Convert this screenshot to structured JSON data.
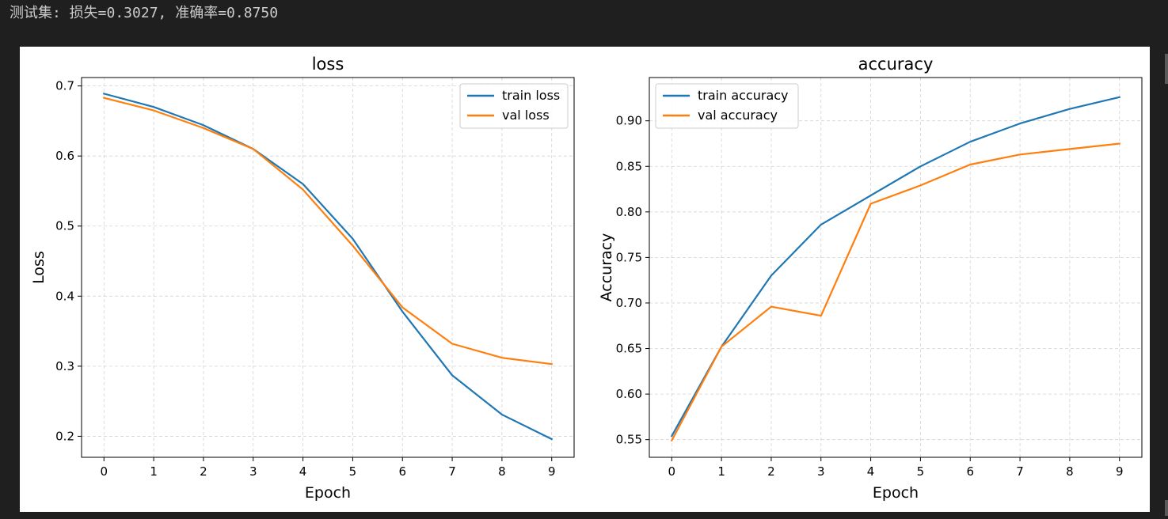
{
  "output": {
    "text": "测试集: 损失=0.3027, 准确率=0.8750"
  },
  "chart_data": [
    {
      "type": "line",
      "title": "loss",
      "xlabel": "Epoch",
      "ylabel": "Loss",
      "x": [
        0,
        1,
        2,
        3,
        4,
        5,
        6,
        7,
        8,
        9
      ],
      "xlim": [
        -0.45,
        9.45
      ],
      "ylim": [
        0.17,
        0.712
      ],
      "xticks": [
        "0",
        "1",
        "2",
        "3",
        "4",
        "5",
        "6",
        "7",
        "8",
        "9"
      ],
      "yticks": [
        "0.2",
        "0.3",
        "0.4",
        "0.5",
        "0.6",
        "0.7"
      ],
      "ytick_values": [
        0.2,
        0.3,
        0.4,
        0.5,
        0.6,
        0.7
      ],
      "grid": true,
      "legend_position": "top-right",
      "series": [
        {
          "name": "train loss",
          "color": "#1f77b4",
          "values": [
            0.689,
            0.67,
            0.644,
            0.61,
            0.56,
            0.482,
            0.378,
            0.287,
            0.231,
            0.196
          ]
        },
        {
          "name": "val loss",
          "color": "#ff7f0e",
          "values": [
            0.683,
            0.665,
            0.64,
            0.61,
            0.552,
            0.472,
            0.384,
            0.332,
            0.312,
            0.303
          ]
        }
      ]
    },
    {
      "type": "line",
      "title": "accuracy",
      "xlabel": "Epoch",
      "ylabel": "Accuracy",
      "x": [
        0,
        1,
        2,
        3,
        4,
        5,
        6,
        7,
        8,
        9
      ],
      "xlim": [
        -0.45,
        9.45
      ],
      "ylim": [
        0.5306,
        0.9475
      ],
      "xticks": [
        "0",
        "1",
        "2",
        "3",
        "4",
        "5",
        "6",
        "7",
        "8",
        "9"
      ],
      "yticks": [
        "0.55",
        "0.60",
        "0.65",
        "0.70",
        "0.75",
        "0.80",
        "0.85",
        "0.90"
      ],
      "ytick_values": [
        0.55,
        0.6,
        0.65,
        0.7,
        0.75,
        0.8,
        0.85,
        0.9
      ],
      "grid": true,
      "legend_position": "top-left",
      "series": [
        {
          "name": "train accuracy",
          "color": "#1f77b4",
          "values": [
            0.554,
            0.652,
            0.73,
            0.786,
            0.818,
            0.85,
            0.877,
            0.897,
            0.913,
            0.926
          ]
        },
        {
          "name": "val accuracy",
          "color": "#ff7f0e",
          "values": [
            0.549,
            0.652,
            0.696,
            0.686,
            0.809,
            0.829,
            0.852,
            0.863,
            0.869,
            0.875
          ]
        }
      ]
    }
  ]
}
